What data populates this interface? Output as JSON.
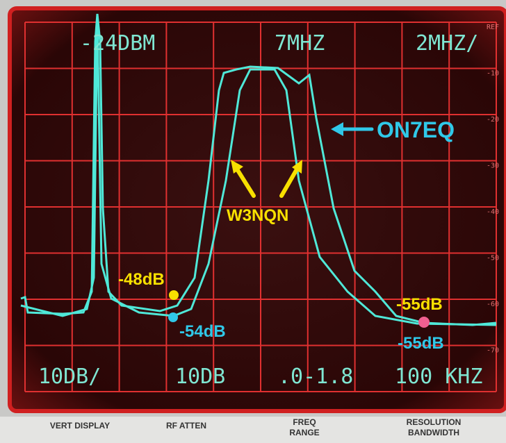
{
  "screen": {
    "readouts_top": [
      "-24DBM",
      "7MHZ",
      "2MHZ/"
    ],
    "readouts_bottom": [
      "10DB/",
      "10DB",
      ".0-1.8",
      "100 KHZ"
    ],
    "right_scale": [
      "REF",
      "-10",
      "-20",
      "-30",
      "-40",
      "-50",
      "-60",
      "-70"
    ]
  },
  "annotations": {
    "on7eq": "ON7EQ",
    "w3nqn": "W3NQN",
    "marker_48": "-48dB",
    "marker_54": "-54dB",
    "marker_55_yellow": "-55dB",
    "marker_55_cyan": "-55dB"
  },
  "panel": {
    "vert_display": "VERT DISPLAY",
    "rf_atten": "RF ATTEN",
    "freq_range": [
      "FREQ",
      "RANGE"
    ],
    "resolution_bandwidth": [
      "RESOLUTION",
      "BANDWIDTH"
    ]
  }
}
